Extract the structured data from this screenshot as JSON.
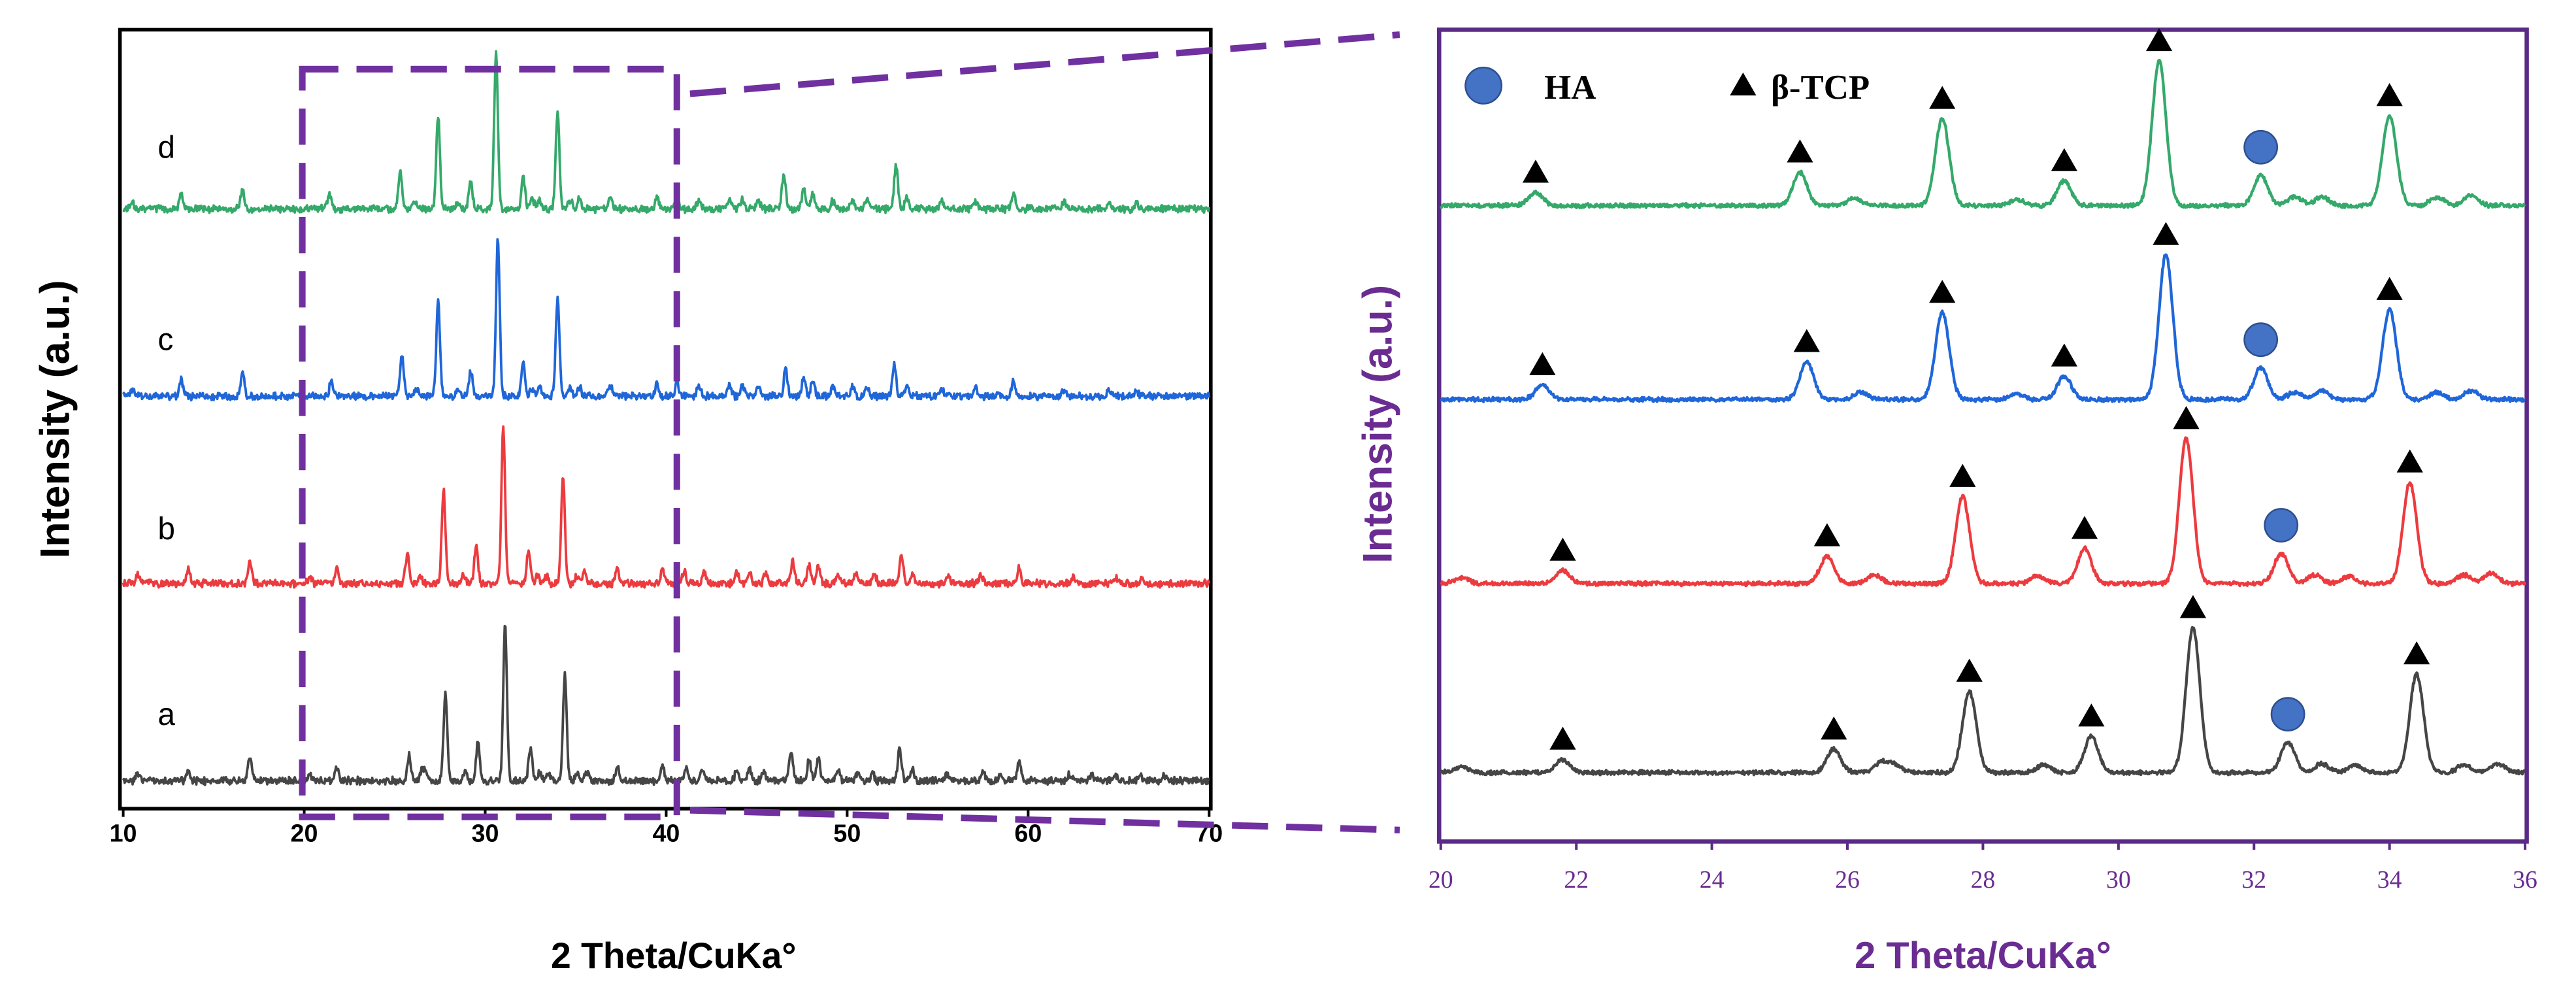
{
  "chart_data": [
    {
      "type": "line",
      "xlabel": "2 Theta/CuKa°",
      "ylabel": "Intensity (a.u.)",
      "xlim": [
        10,
        70
      ],
      "xticks": [
        10,
        20,
        30,
        40,
        50,
        60,
        70
      ],
      "intensity_unit": "relative % of strongest reflection",
      "series": [
        {
          "name": "a",
          "color": "#454545",
          "peaks": [
            [
              10.8,
              4
            ],
            [
              13.6,
              6
            ],
            [
              17.0,
              15
            ],
            [
              20.3,
              4
            ],
            [
              21.8,
              9
            ],
            [
              25.8,
              16
            ],
            [
              26.5,
              7
            ],
            [
              26.7,
              5
            ],
            [
              27.8,
              56
            ],
            [
              28.9,
              5
            ],
            [
              29.6,
              25
            ],
            [
              31.1,
              100
            ],
            [
              32.5,
              21
            ],
            [
              33.0,
              6
            ],
            [
              33.5,
              5
            ],
            [
              34.4,
              68
            ],
            [
              35.1,
              5
            ],
            [
              35.6,
              6
            ],
            [
              37.3,
              9
            ],
            [
              39.8,
              10
            ],
            [
              41.1,
              9
            ],
            [
              42.0,
              8
            ],
            [
              43.9,
              7
            ],
            [
              44.6,
              8
            ],
            [
              45.4,
              6
            ],
            [
              46.9,
              20
            ],
            [
              47.9,
              14
            ],
            [
              48.4,
              14
            ],
            [
              49.5,
              7
            ],
            [
              50.6,
              6
            ],
            [
              51.4,
              5
            ],
            [
              52.9,
              21
            ],
            [
              53.6,
              8
            ],
            [
              55.5,
              5
            ],
            [
              57.5,
              6
            ],
            [
              58.5,
              4
            ],
            [
              59.5,
              12
            ],
            [
              62.3,
              4
            ],
            [
              63.5,
              4
            ],
            [
              64.8,
              4
            ],
            [
              66.2,
              4
            ],
            [
              67.5,
              3
            ]
          ]
        },
        {
          "name": "b",
          "color": "#ec3b3f",
          "peaks": [
            [
              10.8,
              6
            ],
            [
              13.6,
              10
            ],
            [
              17.0,
              14
            ],
            [
              20.3,
              4
            ],
            [
              21.8,
              9
            ],
            [
              25.7,
              19
            ],
            [
              26.4,
              6
            ],
            [
              27.7,
              60
            ],
            [
              28.8,
              5
            ],
            [
              29.5,
              24
            ],
            [
              31.0,
              100
            ],
            [
              32.4,
              21
            ],
            [
              32.9,
              6
            ],
            [
              33.4,
              5
            ],
            [
              34.3,
              70
            ],
            [
              35.1,
              6
            ],
            [
              35.5,
              7
            ],
            [
              37.3,
              10
            ],
            [
              39.8,
              10
            ],
            [
              41.0,
              8
            ],
            [
              42.1,
              7
            ],
            [
              43.9,
              7
            ],
            [
              44.6,
              8
            ],
            [
              45.5,
              7
            ],
            [
              47.0,
              15
            ],
            [
              47.9,
              12
            ],
            [
              48.4,
              12
            ],
            [
              49.5,
              6
            ],
            [
              50.5,
              6
            ],
            [
              51.5,
              6
            ],
            [
              53.0,
              18
            ],
            [
              53.6,
              7
            ],
            [
              55.6,
              5
            ],
            [
              57.4,
              6
            ],
            [
              59.5,
              10
            ],
            [
              62.5,
              4
            ],
            [
              64.8,
              4
            ],
            [
              66.3,
              3
            ]
          ]
        },
        {
          "name": "c",
          "color": "#1f66d9",
          "peaks": [
            [
              10.5,
              4
            ],
            [
              13.2,
              10
            ],
            [
              16.6,
              15
            ],
            [
              21.5,
              10
            ],
            [
              25.4,
              26
            ],
            [
              26.2,
              5
            ],
            [
              27.4,
              60
            ],
            [
              28.5,
              4
            ],
            [
              29.2,
              16
            ],
            [
              30.7,
              100
            ],
            [
              32.1,
              22
            ],
            [
              32.6,
              5
            ],
            [
              33.0,
              6
            ],
            [
              34.0,
              62
            ],
            [
              34.7,
              5
            ],
            [
              35.2,
              6
            ],
            [
              36.9,
              8
            ],
            [
              39.5,
              8
            ],
            [
              40.6,
              8
            ],
            [
              41.8,
              7
            ],
            [
              43.5,
              8
            ],
            [
              44.2,
              7
            ],
            [
              45.1,
              6
            ],
            [
              46.6,
              17
            ],
            [
              47.6,
              12
            ],
            [
              48.1,
              10
            ],
            [
              49.2,
              6
            ],
            [
              50.3,
              6
            ],
            [
              51.1,
              6
            ],
            [
              52.6,
              20
            ],
            [
              53.3,
              7
            ],
            [
              55.2,
              5
            ],
            [
              57.1,
              6
            ],
            [
              59.2,
              10
            ],
            [
              62.0,
              4
            ],
            [
              64.5,
              4
            ],
            [
              66.0,
              3
            ]
          ]
        },
        {
          "name": "d",
          "color": "#34a96a",
          "peaks": [
            [
              10.5,
              4
            ],
            [
              13.2,
              10
            ],
            [
              16.6,
              13
            ],
            [
              21.4,
              9
            ],
            [
              25.3,
              23
            ],
            [
              26.1,
              5
            ],
            [
              27.4,
              60
            ],
            [
              28.5,
              4
            ],
            [
              29.2,
              17
            ],
            [
              30.6,
              100
            ],
            [
              32.1,
              21
            ],
            [
              32.6,
              6
            ],
            [
              33.0,
              6
            ],
            [
              34.0,
              62
            ],
            [
              34.7,
              6
            ],
            [
              35.2,
              7
            ],
            [
              36.9,
              8
            ],
            [
              39.5,
              7
            ],
            [
              40.6,
              6
            ],
            [
              41.8,
              6
            ],
            [
              43.5,
              7
            ],
            [
              44.2,
              6
            ],
            [
              45.1,
              5
            ],
            [
              46.5,
              22
            ],
            [
              47.6,
              12
            ],
            [
              48.1,
              10
            ],
            [
              49.2,
              5
            ],
            [
              50.3,
              5
            ],
            [
              51.1,
              5
            ],
            [
              52.7,
              28
            ],
            [
              53.3,
              8
            ],
            [
              55.2,
              5
            ],
            [
              57.1,
              5
            ],
            [
              59.2,
              10
            ],
            [
              62.0,
              4
            ],
            [
              64.5,
              4
            ],
            [
              66.0,
              3
            ]
          ]
        }
      ]
    },
    {
      "type": "line",
      "xlabel": "2 Theta/CuKa°",
      "ylabel": "Intensity (a.u.)",
      "xlim": [
        20,
        36
      ],
      "xticks": [
        20,
        22,
        24,
        26,
        28,
        30,
        32,
        34,
        36
      ],
      "legend": [
        {
          "label": "HA",
          "symbol": "circle",
          "color": "#4472c4"
        },
        {
          "label": "β-TCP",
          "symbol": "triangle",
          "color": "#000000"
        }
      ],
      "series": [
        {
          "color": "#454545",
          "markers": [
            {
              "x": 21.8,
              "symbol": "triangle"
            },
            {
              "x": 25.8,
              "symbol": "triangle"
            },
            {
              "x": 27.8,
              "symbol": "triangle"
            },
            {
              "x": 29.6,
              "symbol": "triangle"
            },
            {
              "x": 31.1,
              "symbol": "triangle"
            },
            {
              "x": 32.5,
              "symbol": "circle"
            },
            {
              "x": 34.4,
              "symbol": "triangle"
            }
          ]
        },
        {
          "color": "#ec3b3f",
          "markers": [
            {
              "x": 21.8,
              "symbol": "triangle"
            },
            {
              "x": 25.7,
              "symbol": "triangle"
            },
            {
              "x": 27.7,
              "symbol": "triangle"
            },
            {
              "x": 29.5,
              "symbol": "triangle"
            },
            {
              "x": 31.0,
              "symbol": "triangle"
            },
            {
              "x": 32.4,
              "symbol": "circle"
            },
            {
              "x": 34.3,
              "symbol": "triangle"
            }
          ]
        },
        {
          "color": "#1f66d9",
          "markers": [
            {
              "x": 21.5,
              "symbol": "triangle"
            },
            {
              "x": 25.4,
              "symbol": "triangle"
            },
            {
              "x": 27.4,
              "symbol": "triangle"
            },
            {
              "x": 29.2,
              "symbol": "triangle"
            },
            {
              "x": 30.7,
              "symbol": "triangle"
            },
            {
              "x": 32.1,
              "symbol": "circle"
            },
            {
              "x": 34.0,
              "symbol": "triangle"
            }
          ]
        },
        {
          "color": "#34a96a",
          "markers": [
            {
              "x": 21.4,
              "symbol": "triangle"
            },
            {
              "x": 25.3,
              "symbol": "triangle"
            },
            {
              "x": 27.4,
              "symbol": "triangle"
            },
            {
              "x": 29.2,
              "symbol": "triangle"
            },
            {
              "x": 30.6,
              "symbol": "triangle"
            },
            {
              "x": 32.1,
              "symbol": "circle"
            },
            {
              "x": 34.0,
              "symbol": "triangle"
            }
          ]
        }
      ]
    }
  ]
}
